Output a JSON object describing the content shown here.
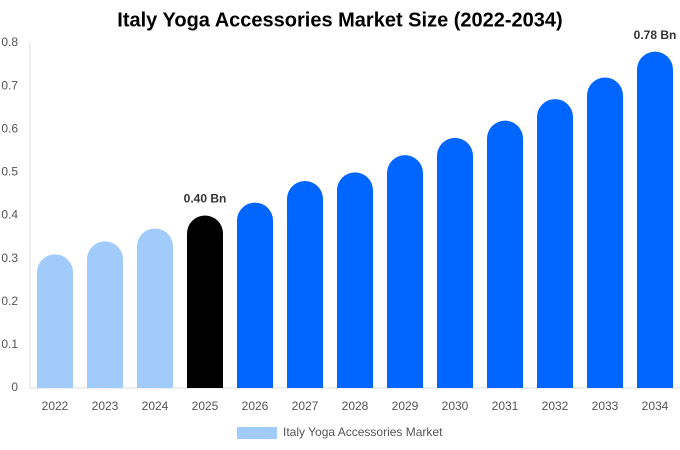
{
  "chart_data": {
    "type": "bar",
    "title": "Italy Yoga Accessories Market Size (2022-2034)",
    "categories": [
      "2022",
      "2023",
      "2024",
      "2025",
      "2026",
      "2027",
      "2028",
      "2029",
      "2030",
      "2031",
      "2032",
      "2033",
      "2034"
    ],
    "series": [
      {
        "name": "Italy Yoga Accessories Market",
        "color": "#a0cbfb",
        "values": [
          0.31,
          0.34,
          0.37,
          0.4,
          0.43,
          0.48,
          0.5,
          0.54,
          0.58,
          0.62,
          0.67,
          0.72,
          0.78
        ],
        "value_labels": [
          null,
          null,
          null,
          "0.40 Bn",
          null,
          null,
          null,
          null,
          null,
          null,
          null,
          null,
          "0.78 Bn"
        ],
        "bar_colors": [
          "#a0cbfb",
          "#a0cbfb",
          "#a0cbfb",
          "#000000",
          "#0066ff",
          "#0066ff",
          "#0066ff",
          "#0066ff",
          "#0066ff",
          "#0066ff",
          "#0066ff",
          "#0066ff",
          "#0066ff"
        ]
      }
    ],
    "ylim": [
      0,
      0.8
    ],
    "yticks": [
      0,
      0.1,
      0.2,
      0.3,
      0.4,
      0.5,
      0.6,
      0.7,
      0.8
    ],
    "grid": false,
    "legend": "bottom"
  }
}
